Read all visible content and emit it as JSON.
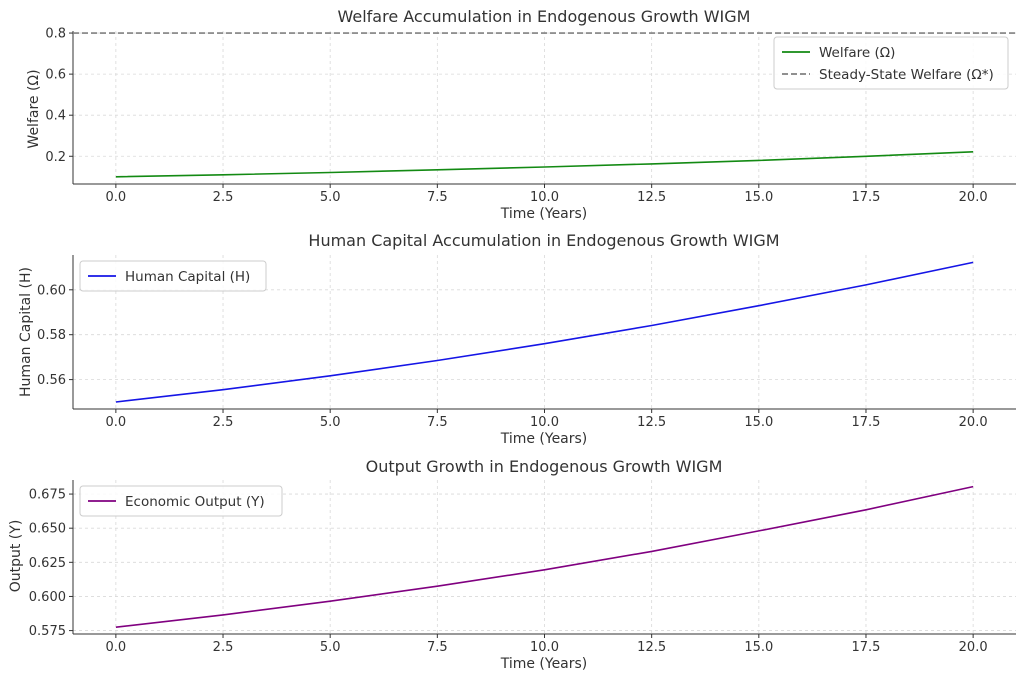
{
  "chart_data": [
    {
      "type": "line",
      "title": "Welfare Accumulation in Endogenous Growth WIGM",
      "xlabel": "Time (Years)",
      "ylabel": "Welfare (Ω)",
      "xlim": [
        -1,
        21
      ],
      "ylim": [
        0.065,
        0.81
      ],
      "xticks": [
        0.0,
        2.5,
        5.0,
        7.5,
        10.0,
        12.5,
        15.0,
        17.5,
        20.0
      ],
      "xtick_labels": [
        "0.0",
        "2.5",
        "5.0",
        "7.5",
        "10.0",
        "12.5",
        "15.0",
        "17.5",
        "20.0"
      ],
      "yticks": [
        0.2,
        0.4,
        0.6,
        0.8
      ],
      "ytick_labels": [
        "0.2",
        "0.4",
        "0.6",
        "0.8"
      ],
      "grid": true,
      "legend_position": "top-right",
      "series": [
        {
          "name": "Welfare (Ω)",
          "color": "#138a13",
          "style": "solid",
          "x": [
            0,
            2.5,
            5,
            7.5,
            10,
            12.5,
            15,
            17.5,
            20
          ],
          "y": [
            0.1,
            0.11,
            0.121,
            0.134,
            0.148,
            0.163,
            0.18,
            0.2,
            0.222
          ]
        },
        {
          "name": "Steady-State Welfare (Ω*)",
          "color": "#808080",
          "style": "dashed",
          "x": [
            -1,
            21
          ],
          "y": [
            0.8,
            0.8
          ]
        }
      ]
    },
    {
      "type": "line",
      "title": "Human Capital Accumulation in Endogenous Growth WIGM",
      "xlabel": "Time (Years)",
      "ylabel": "Human Capital (H)",
      "xlim": [
        -1,
        21
      ],
      "ylim": [
        0.5469,
        0.6155
      ],
      "xticks": [
        0.0,
        2.5,
        5.0,
        7.5,
        10.0,
        12.5,
        15.0,
        17.5,
        20.0
      ],
      "xtick_labels": [
        "0.0",
        "2.5",
        "5.0",
        "7.5",
        "10.0",
        "12.5",
        "15.0",
        "17.5",
        "20.0"
      ],
      "yticks": [
        0.56,
        0.58,
        0.6
      ],
      "ytick_labels": [
        "0.56",
        "0.58",
        "0.60"
      ],
      "grid": true,
      "legend_position": "top-left",
      "series": [
        {
          "name": "Human Capital (H)",
          "color": "#1515e6",
          "style": "solid",
          "x": [
            0,
            2.5,
            5,
            7.5,
            10,
            12.5,
            15,
            17.5,
            20
          ],
          "y": [
            0.55,
            0.5555,
            0.5617,
            0.5685,
            0.576,
            0.5841,
            0.5929,
            0.6022,
            0.6122
          ]
        }
      ]
    },
    {
      "type": "line",
      "title": "Output Growth in Endogenous Growth WIGM",
      "xlabel": "Time (Years)",
      "ylabel": "Output (Y)",
      "xlim": [
        -1,
        21
      ],
      "ylim": [
        0.5725,
        0.6853
      ],
      "xticks": [
        0.0,
        2.5,
        5.0,
        7.5,
        10.0,
        12.5,
        15.0,
        17.5,
        20.0
      ],
      "xtick_labels": [
        "0.0",
        "2.5",
        "5.0",
        "7.5",
        "10.0",
        "12.5",
        "15.0",
        "17.5",
        "20.0"
      ],
      "yticks": [
        0.575,
        0.6,
        0.625,
        0.65,
        0.675
      ],
      "ytick_labels": [
        "0.575",
        "0.600",
        "0.625",
        "0.650",
        "0.675"
      ],
      "grid": true,
      "legend_position": "top-left",
      "series": [
        {
          "name": "Economic Output (Y)",
          "color": "#800080",
          "style": "solid",
          "x": [
            0,
            2.5,
            5,
            7.5,
            10,
            12.5,
            15,
            17.5,
            20
          ],
          "y": [
            0.5775,
            0.5865,
            0.5965,
            0.6075,
            0.6195,
            0.633,
            0.648,
            0.6635,
            0.6805
          ]
        }
      ]
    }
  ]
}
